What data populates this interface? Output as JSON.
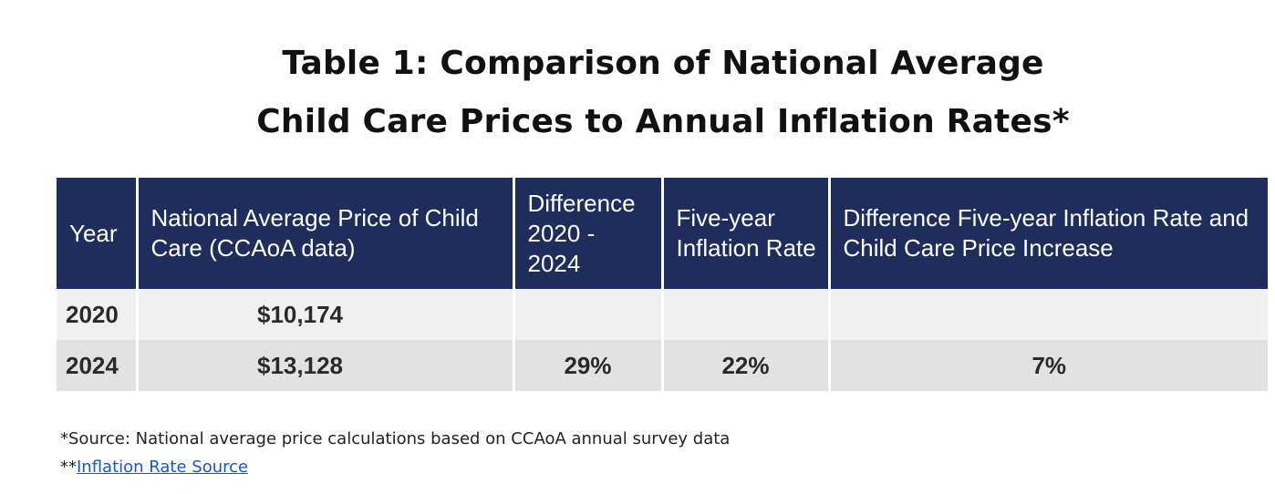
{
  "title": {
    "line1": "Table 1: Comparison of National Average",
    "line2": "Child Care Prices to Annual Inflation Rates*"
  },
  "table": {
    "headers": [
      "Year",
      "National Average Price of Child Care (CCAoA data)",
      "Difference 2020 - 2024",
      "Five-year Inflation Rate",
      "Difference Five-year Inflation Rate and Child Care Price Increase"
    ],
    "rows": [
      {
        "year": "2020",
        "price": "$10,174",
        "difference": "",
        "inflation": "",
        "gap": ""
      },
      {
        "year": "2024",
        "price": "$13,128",
        "difference": "29%",
        "inflation": "22%",
        "gap": "7%"
      }
    ],
    "header_color": "#1e2d5c",
    "row_colors": [
      "#f0f0f0",
      "#e2e2e2"
    ]
  },
  "notes": {
    "source": "*Source: National average price calculations based on CCAoA annual survey data",
    "link_prefix": "**",
    "link_text": "Inflation Rate Source",
    "link_color": "#1a55c4"
  }
}
